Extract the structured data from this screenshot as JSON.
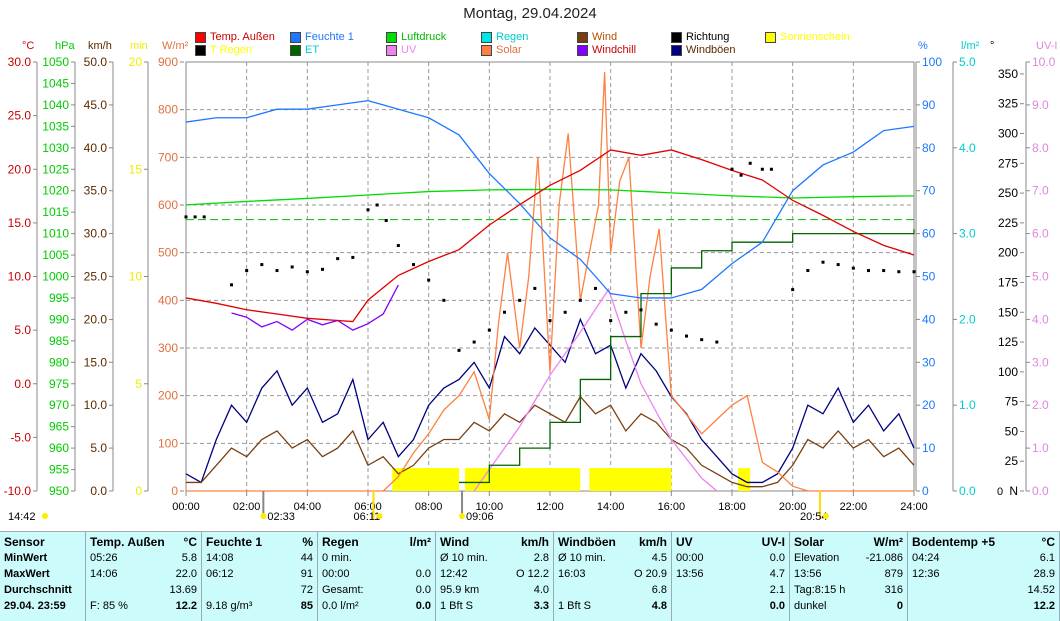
{
  "title": "Montag, 29.04.2024",
  "legend": [
    {
      "label": "Temp. Außen",
      "box": "#ff0000",
      "text": "#cc0000"
    },
    {
      "label": "T Regen",
      "box": "#000000",
      "text": "#ffff00"
    },
    {
      "label": "Feuchte 1",
      "box": "#1e78ff",
      "text": "#1e78ff"
    },
    {
      "label": "ET",
      "box": "#006400",
      "text": "#00d0d0"
    },
    {
      "label": "Luftdruck",
      "box": "#00dd00",
      "text": "#00bb00"
    },
    {
      "label": "UV",
      "box": "#ee82ee",
      "text": "#ee82ee"
    },
    {
      "label": "Regen",
      "box": "#00e5e5",
      "text": "#00cccc"
    },
    {
      "label": "Solar",
      "box": "#ff8040",
      "text": "#e07040"
    },
    {
      "label": "Wind",
      "box": "#7a3f10",
      "text": "#b05000"
    },
    {
      "label": "Windchill",
      "box": "#8000ff",
      "text": "#cc0000"
    },
    {
      "label": "Richtung",
      "box": "#000000",
      "text": "#000000"
    },
    {
      "label": "Windböen",
      "box": "#000080",
      "text": "#5a2a00"
    },
    {
      "label": "Sonnenschein",
      "box": "#ffff00",
      "text": "#ffff00"
    }
  ],
  "chart_data": {
    "type": "line",
    "title": "Montag, 29.04.2024",
    "x_range": [
      0,
      24
    ],
    "x_ticks": [
      "00:00",
      "02:00",
      "04:00",
      "06:00",
      "08:00",
      "10:00",
      "12:00",
      "14:00",
      "16:00",
      "18:00",
      "20:00",
      "22:00",
      "24:00"
    ],
    "axes": {
      "temp": {
        "unit": "°C",
        "min": -10,
        "max": 30,
        "step": 5,
        "dec": 1,
        "color": "#cc0000"
      },
      "pressure": {
        "unit": "hPa",
        "min": 950,
        "max": 1050,
        "step": 5,
        "dec": 0,
        "color": "#00cc00"
      },
      "wind": {
        "unit": "km/h",
        "min": 0,
        "max": 50,
        "step": 5,
        "dec": 1,
        "color": "#5a2a00"
      },
      "sun_min": {
        "unit": "min",
        "min": 0,
        "max": 20,
        "step": 5,
        "dec": 0,
        "color": "#eeee00"
      },
      "solar": {
        "unit": "W/m²",
        "min": 0,
        "max": 900,
        "step": 100,
        "dec": 0,
        "color": "#e07040"
      },
      "humidity": {
        "unit": "%",
        "min": 0,
        "max": 100,
        "step": 10,
        "dec": 0,
        "color": "#1e78ff"
      },
      "rain": {
        "unit": "l/m²",
        "min": 0,
        "max": 5,
        "step": 1,
        "dec": 1,
        "color": "#00cccc"
      },
      "direction": {
        "unit": "°",
        "min": 0,
        "max": 360,
        "step": 25,
        "dec": 0,
        "color": "#000000",
        "zero_label": "N"
      },
      "uv": {
        "unit": "UV-I",
        "min": 0,
        "max": 10,
        "step": 1,
        "dec": 1,
        "color": "#dd88dd"
      }
    },
    "series": [
      {
        "name": "Temp. Außen",
        "axis": "temp",
        "color": "#e00000",
        "x": [
          0,
          1,
          2,
          3,
          4,
          5,
          5.5,
          6,
          7,
          8,
          9,
          10,
          11,
          12,
          13,
          14,
          15,
          16,
          17,
          18,
          19,
          20,
          21,
          22,
          23,
          24
        ],
        "y": [
          8.0,
          7.5,
          6.9,
          6.5,
          6.1,
          5.9,
          5.8,
          7.8,
          10.1,
          11.4,
          12.5,
          14.8,
          16.7,
          18.5,
          19.9,
          21.8,
          21.3,
          21.8,
          20.9,
          19.9,
          19.0,
          17.1,
          15.7,
          14.2,
          12.9,
          12.0
        ]
      },
      {
        "name": "Feuchte 1",
        "axis": "humidity",
        "color": "#1e78ff",
        "x": [
          0,
          1,
          2,
          3,
          4,
          5,
          6,
          6.5,
          7,
          8,
          9,
          10,
          11,
          12,
          13,
          14,
          15,
          16,
          17,
          18,
          19,
          20,
          21,
          22,
          23,
          24
        ],
        "y": [
          86,
          87,
          87,
          89,
          89,
          90,
          91,
          90,
          89,
          87,
          83,
          74,
          67,
          59,
          54,
          46,
          45,
          45,
          47,
          53,
          58,
          70,
          76,
          79,
          84,
          85
        ]
      },
      {
        "name": "Luftdruck",
        "axis": "pressure",
        "color": "#00dd00",
        "x": [
          0,
          2,
          4,
          6,
          8,
          10,
          12,
          14,
          16,
          18,
          20,
          22,
          24
        ],
        "y": [
          1016.7,
          1017.5,
          1018.2,
          1019,
          1019.8,
          1020.2,
          1020.3,
          1020.2,
          1019.5,
          1018.8,
          1018.3,
          1018.6,
          1018.8
        ]
      },
      {
        "name": "Solar",
        "axis": "solar",
        "color": "#ff8040",
        "x": [
          0,
          6.5,
          7,
          7.5,
          8,
          8.5,
          9,
          9.5,
          10,
          10.3,
          10.6,
          11,
          11.3,
          11.6,
          12,
          12.3,
          12.6,
          13,
          13.3,
          13.6,
          13.8,
          14,
          14.3,
          14.6,
          15,
          15.3,
          15.6,
          16,
          17,
          17.5,
          18,
          18.5,
          19,
          19.5,
          20,
          20.5,
          24
        ],
        "y": [
          0,
          0,
          30,
          80,
          120,
          170,
          200,
          250,
          150,
          350,
          500,
          300,
          450,
          700,
          250,
          600,
          750,
          400,
          500,
          600,
          879,
          500,
          650,
          700,
          300,
          450,
          550,
          200,
          120,
          150,
          180,
          200,
          60,
          40,
          10,
          0,
          0
        ]
      },
      {
        "name": "UV",
        "axis": "uv",
        "color": "#ee82ee",
        "x": [
          9.5,
          10,
          11,
          12,
          13,
          13.93,
          14.5,
          15,
          16,
          17,
          17.5
        ],
        "y": [
          0,
          0.5,
          1.5,
          2.7,
          3.7,
          4.7,
          3.5,
          2.5,
          1.2,
          0.3,
          0
        ]
      },
      {
        "name": "Windchill",
        "axis": "temp",
        "color": "#8000ff",
        "x": [
          1.5,
          2,
          2.5,
          3,
          3.5,
          4,
          4.5,
          5,
          5.5,
          6,
          6.5,
          7
        ],
        "y": [
          6.6,
          6.2,
          5.3,
          5.8,
          5.0,
          6.0,
          5.5,
          5.9,
          5.0,
          5.6,
          6.5,
          9.2
        ]
      },
      {
        "name": "ET",
        "axis": "rain",
        "color": "#006400",
        "step": true,
        "x": [
          9,
          10,
          11,
          12,
          13,
          14,
          15,
          16,
          17,
          18,
          20,
          24
        ],
        "y": [
          0.1,
          0.3,
          0.5,
          0.8,
          1.3,
          1.8,
          2.3,
          2.6,
          2.8,
          2.9,
          3.0,
          3.05
        ]
      },
      {
        "name": "Wind",
        "axis": "wind",
        "color": "#7a3f10",
        "x": [
          0,
          0.5,
          1,
          1.5,
          2,
          2.5,
          3,
          3.5,
          4,
          4.5,
          5,
          5.5,
          6,
          6.5,
          7,
          7.5,
          8,
          8.5,
          9,
          9.5,
          10,
          10.5,
          11,
          11.5,
          12,
          12.5,
          13,
          13.5,
          14,
          14.5,
          15,
          15.5,
          16,
          16.5,
          17,
          17.5,
          18,
          18.5,
          19,
          19.5,
          20,
          20.5,
          21,
          21.5,
          22,
          22.5,
          23,
          23.5,
          24
        ],
        "y": [
          1,
          1,
          3,
          5,
          4,
          6,
          7,
          5,
          6,
          4,
          5,
          7,
          3,
          4,
          2,
          3,
          5,
          6,
          6,
          8,
          7,
          9,
          8,
          10,
          9,
          8,
          11,
          9,
          10,
          7,
          9,
          8,
          6,
          5,
          3,
          2,
          1,
          0.5,
          0.5,
          1,
          3,
          6,
          5,
          7,
          5,
          6,
          4,
          5,
          3
        ]
      },
      {
        "name": "Windböen",
        "axis": "wind",
        "color": "#000080",
        "x": [
          0,
          0.5,
          1,
          1.5,
          2,
          2.5,
          3,
          3.5,
          4,
          4.5,
          5,
          5.5,
          6,
          6.5,
          7,
          7.5,
          8,
          8.5,
          9,
          9.5,
          10,
          10.5,
          11,
          11.5,
          12,
          12.5,
          13,
          13.5,
          14,
          14.5,
          15,
          15.5,
          16,
          16.5,
          17,
          17.5,
          18,
          18.5,
          19,
          19.5,
          20,
          20.5,
          21,
          21.5,
          22,
          22.5,
          23,
          23.5,
          24
        ],
        "y": [
          2,
          1,
          6,
          10,
          8,
          12,
          14,
          10,
          12,
          8,
          9,
          13,
          6,
          8,
          4,
          6,
          10,
          12,
          13,
          15,
          12,
          18,
          16,
          19,
          17,
          15,
          20,
          16,
          17,
          12,
          16,
          14,
          11,
          9,
          6,
          4,
          2,
          1,
          1,
          2,
          5,
          10,
          9,
          12,
          8,
          10,
          7,
          9,
          5
        ]
      },
      {
        "name": "Richtung",
        "axis": "direction",
        "color": "#000000",
        "dots": true,
        "x": [
          0,
          0.3,
          0.6,
          1.5,
          2,
          2.5,
          3,
          3.5,
          4,
          4.5,
          5,
          5.5,
          6,
          6.3,
          6.6,
          7,
          7.5,
          8,
          8.5,
          9,
          9.5,
          10,
          10.5,
          11,
          11.5,
          12,
          12.5,
          13,
          13.5,
          14,
          14.5,
          15,
          15.5,
          16,
          16.5,
          17,
          17.5,
          18,
          18.3,
          18.6,
          19,
          19.3,
          20,
          20.5,
          21,
          21.5,
          22,
          22.5,
          23,
          23.5,
          24
        ],
        "y": [
          230,
          230,
          230,
          173,
          185,
          190,
          185,
          188,
          184,
          186,
          195,
          196,
          236,
          240,
          227,
          206,
          190,
          177,
          160,
          118,
          125,
          135,
          150,
          160,
          170,
          143,
          150,
          160,
          170,
          143,
          150,
          152,
          140,
          135,
          130,
          127,
          125,
          270,
          265,
          275,
          270,
          270,
          169,
          185,
          192,
          190,
          187,
          185,
          185,
          184,
          184
        ]
      }
    ],
    "sunshine_intervals": [
      [
        6.8,
        9.0
      ],
      [
        9.2,
        13.0
      ],
      [
        13.3,
        16.0
      ],
      [
        18.2,
        18.6
      ]
    ],
    "reference_line": {
      "axis": "pressure",
      "value": 1013.25
    },
    "astro": [
      {
        "time": "14:42",
        "icon": "moon-up",
        "h": -1
      },
      {
        "time": "02:33",
        "icon": "moon",
        "h": 2.55
      },
      {
        "time": "06:11",
        "icon": "sunrise",
        "h": 6.18
      },
      {
        "time": "09:06",
        "icon": "moon-set",
        "h": 9.1
      },
      {
        "time": "20:54",
        "icon": "sunset",
        "h": 20.9
      }
    ]
  },
  "table": [
    {
      "head": [
        "Sensor",
        ""
      ],
      "rows": [
        [
          "MinWert",
          ""
        ],
        [
          "MaxWert",
          ""
        ],
        [
          "Durchschnitt",
          ""
        ],
        [
          "29.04. 23:59",
          ""
        ]
      ],
      "label": true
    },
    {
      "head": [
        "Temp. Außen",
        "°C"
      ],
      "rows": [
        [
          "05:26",
          "5.8"
        ],
        [
          "14:06",
          "22.0"
        ],
        [
          "",
          "13.69"
        ],
        [
          "F: 85 %",
          "12.2"
        ]
      ]
    },
    {
      "head": [
        "Feuchte 1",
        "%"
      ],
      "rows": [
        [
          "14:08",
          "44"
        ],
        [
          "06:12",
          "91"
        ],
        [
          "",
          "72"
        ],
        [
          "9.18 g/m³",
          "85"
        ]
      ]
    },
    {
      "head": [
        "Regen",
        "l/m²"
      ],
      "rows": [
        [
          "0 min.",
          ""
        ],
        [
          "00:00",
          "0.0"
        ],
        [
          "Gesamt:",
          "0.0"
        ],
        [
          "0.0 l/m²",
          "0.0"
        ]
      ]
    },
    {
      "head": [
        "Wind",
        "km/h"
      ],
      "rows": [
        [
          "Ø 10 min.",
          "2.8"
        ],
        [
          "12:42",
          "O 12.2"
        ],
        [
          "95.9 km",
          "4.0"
        ],
        [
          "1 Bft S",
          "3.3"
        ]
      ]
    },
    {
      "head": [
        "Windböen",
        "km/h"
      ],
      "rows": [
        [
          "Ø 10 min.",
          "4.5"
        ],
        [
          "16:03",
          "O 20.9"
        ],
        [
          "",
          "6.8"
        ],
        [
          "1 Bft S",
          "4.8"
        ]
      ]
    },
    {
      "head": [
        "UV",
        "UV-I"
      ],
      "rows": [
        [
          "00:00",
          "0.0"
        ],
        [
          "13:56",
          "4.7"
        ],
        [
          "",
          "2.1"
        ],
        [
          "",
          "0.0"
        ]
      ]
    },
    {
      "head": [
        "Solar",
        "W/m²"
      ],
      "rows": [
        [
          "Elevation",
          "-21.086"
        ],
        [
          "13:56",
          "879"
        ],
        [
          "Tag:8:15 h",
          "316"
        ],
        [
          "dunkel",
          "0"
        ]
      ]
    },
    {
      "head": [
        "Bodentemp +5",
        "°C"
      ],
      "rows": [
        [
          "04:24",
          "6.1"
        ],
        [
          "12:36",
          "28.9"
        ],
        [
          "",
          "14.52"
        ],
        [
          "",
          "12.2"
        ]
      ]
    }
  ]
}
